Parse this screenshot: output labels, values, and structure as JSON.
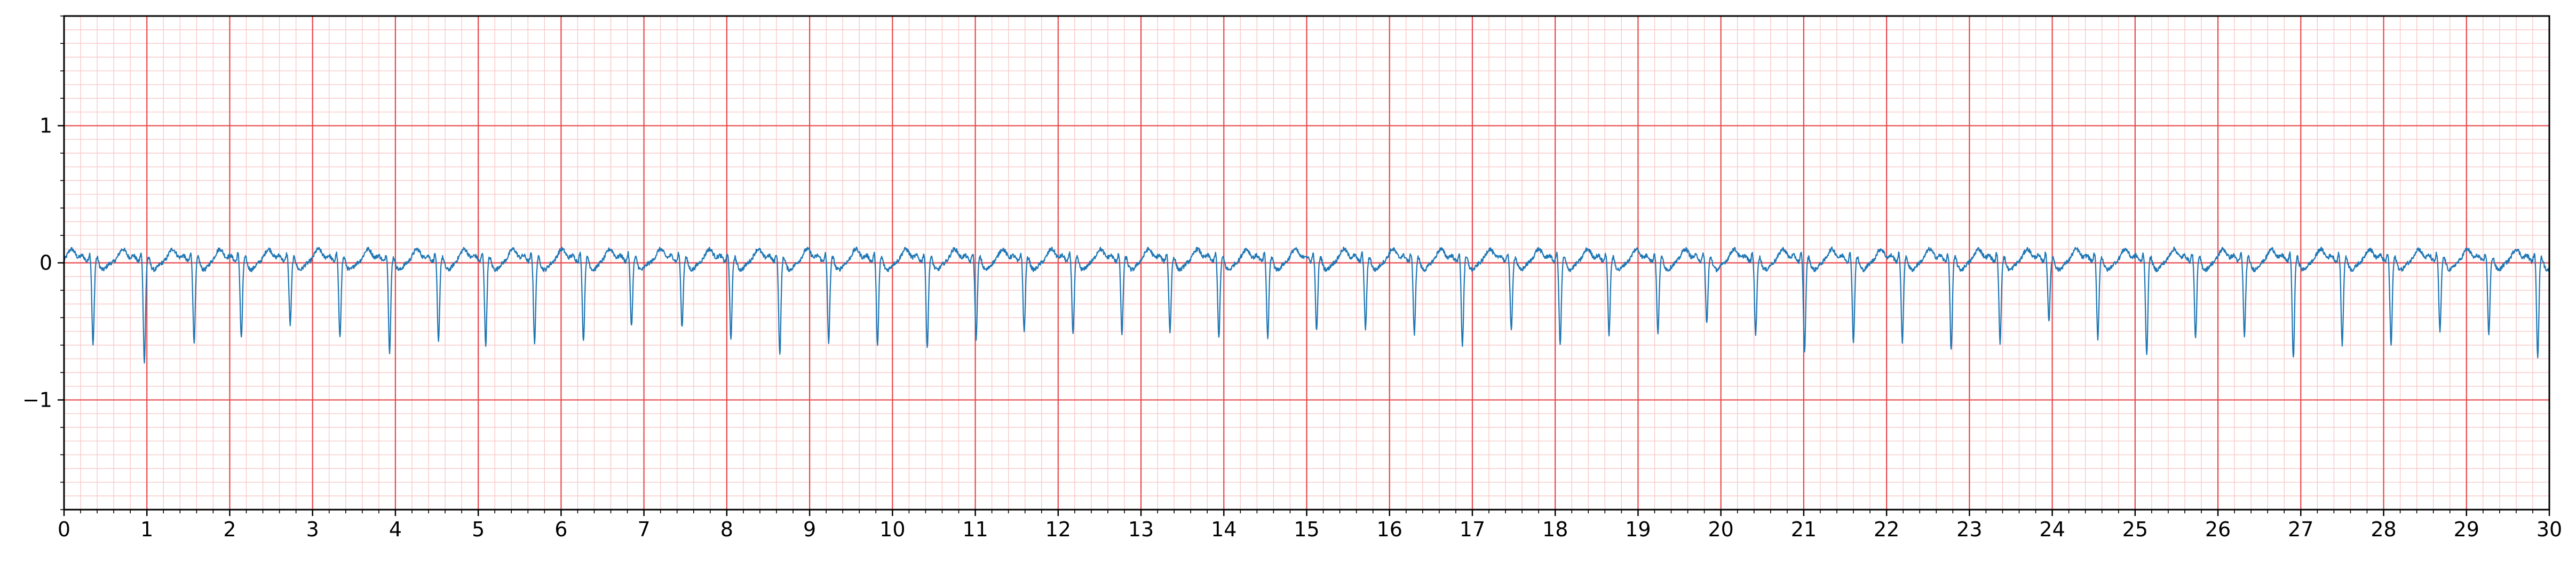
{
  "chart_data": {
    "type": "line",
    "title": "",
    "xlabel": "",
    "ylabel": "",
    "xlim": [
      0,
      30
    ],
    "ylim": [
      -1.8,
      1.8
    ],
    "x_ticks": [
      0,
      1,
      2,
      3,
      4,
      5,
      6,
      7,
      8,
      9,
      10,
      11,
      12,
      13,
      14,
      15,
      16,
      17,
      18,
      19,
      20,
      21,
      22,
      23,
      24,
      25,
      26,
      27,
      28,
      29,
      30
    ],
    "x_tick_labels": [
      "0",
      "1",
      "2",
      "3",
      "4",
      "5",
      "6",
      "7",
      "8",
      "9",
      "10",
      "11",
      "12",
      "13",
      "14",
      "15",
      "16",
      "17",
      "18",
      "19",
      "20",
      "21",
      "22",
      "23",
      "24",
      "25",
      "26",
      "27",
      "28",
      "29",
      "30"
    ],
    "y_ticks": [
      -1,
      0,
      1
    ],
    "y_tick_labels": [
      "−1",
      "0",
      "1"
    ],
    "x_minor_step": 0.2,
    "y_minor_step": 0.1,
    "grid": true,
    "grid_major_color": "#e8474b",
    "grid_minor_color": "#f9c4c4",
    "line_color": "#1f77b4",
    "series": [
      {
        "beat_times": [
          0.35,
          0.97,
          1.57,
          2.14,
          2.73,
          3.33,
          3.93,
          4.52,
          5.09,
          5.68,
          6.27,
          6.85,
          7.46,
          8.05,
          8.64,
          9.23,
          9.82,
          10.42,
          11.01,
          11.59,
          12.18,
          12.77,
          13.35,
          13.94,
          14.53,
          15.12,
          15.71,
          16.3,
          16.88,
          17.47,
          18.06,
          18.65,
          19.24,
          19.83,
          20.42,
          21.01,
          21.6,
          22.19,
          22.78,
          23.37,
          23.96,
          24.55,
          25.14,
          25.73,
          26.32,
          26.91,
          27.5,
          28.09,
          28.68,
          29.27,
          29.86
        ],
        "beat_depths": [
          -0.6,
          -0.72,
          -0.58,
          -0.55,
          -0.45,
          -0.55,
          -0.65,
          -0.58,
          -0.6,
          -0.58,
          -0.57,
          -0.46,
          -0.47,
          -0.55,
          -0.67,
          -0.58,
          -0.6,
          -0.62,
          -0.55,
          -0.5,
          -0.52,
          -0.52,
          -0.5,
          -0.54,
          -0.55,
          -0.5,
          -0.48,
          -0.52,
          -0.6,
          -0.5,
          -0.6,
          -0.52,
          -0.52,
          -0.44,
          -0.52,
          -0.64,
          -0.58,
          -0.58,
          -0.64,
          -0.58,
          -0.42,
          -0.55,
          -0.68,
          -0.55,
          -0.53,
          -0.7,
          -0.6,
          -0.6,
          -0.5,
          -0.52,
          -0.68
        ],
        "wave_peak": 0.1,
        "baseline": 0.0
      }
    ]
  }
}
